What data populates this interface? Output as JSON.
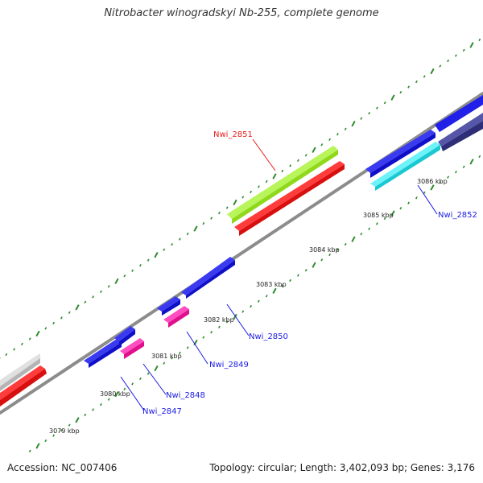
{
  "title": "Nitrobacter winogradskyi Nb-255, complete genome",
  "accession": "Accession: NC_007406",
  "summary": "Topology: circular; Length: 3,402,093 bp; Genes: 3,176",
  "colors": {
    "backbone": "#8c8c8c",
    "tick": "#2e8b2e",
    "gene_blue": "#1a1ae6",
    "gene_magenta": "#ff2aa8",
    "gene_red": "#ff1a1a",
    "gene_green": "#a6f02a",
    "gene_cyan": "#33e0ea",
    "gene_navy": "#3c3c8c",
    "gene_gray": "#c8c8c8",
    "label_blue": "#1a1ae6",
    "label_red": "#e61a1a"
  },
  "kbp_labels": [
    "3079 kbp",
    "3080 kbp",
    "3081 kbp",
    "3082 kbp",
    "3083 kbp",
    "3084 kbp",
    "3085 kbp",
    "3086 kbp"
  ],
  "gene_labels": [
    "Nwi_2847",
    "Nwi_2848",
    "Nwi_2849",
    "Nwi_2850",
    "Nwi_2851",
    "Nwi_2852"
  ]
}
